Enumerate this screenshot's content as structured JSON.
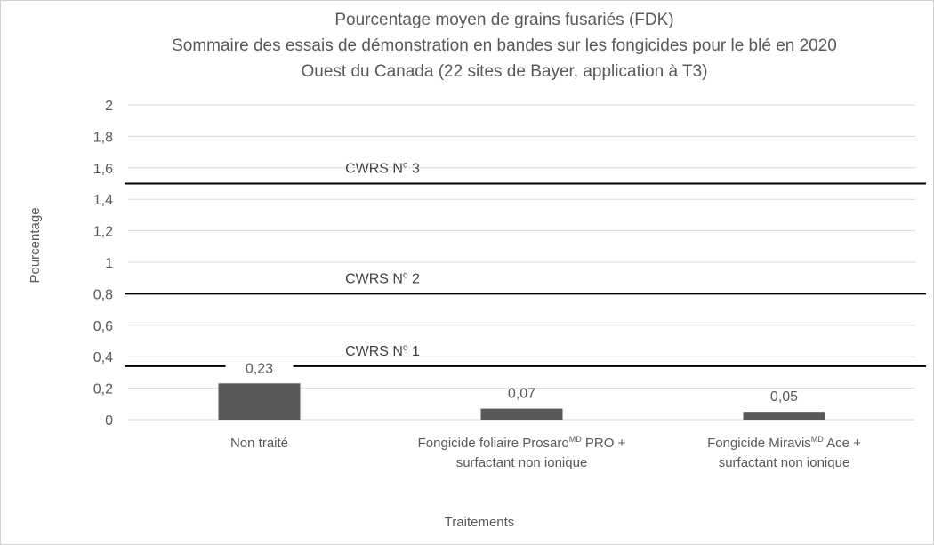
{
  "chart_data": {
    "type": "bar",
    "title_lines": [
      "Pourcentage moyen de grains fusariés (FDK)",
      "Sommaire des essais de démonstration en bandes sur les fongicides pour le blé en 2020",
      "Ouest du Canada (22 sites de Bayer, application à T3)"
    ],
    "xlabel": "Traitements",
    "ylabel": "Pourcentage",
    "ylim": [
      0,
      2
    ],
    "yticks": [
      0,
      0.2,
      0.4,
      0.6,
      0.8,
      1.0,
      1.2,
      1.4,
      1.6,
      1.8,
      2.0
    ],
    "ytick_labels": [
      "0",
      "0,2",
      "0,4",
      "0,6",
      "0,8",
      "1",
      "1,2",
      "1,4",
      "1,6",
      "1,8",
      "2"
    ],
    "grid": true,
    "categories": [
      {
        "lines": [
          {
            "parts": [
              {
                "text": "Non traité",
                "sup": false
              }
            ]
          }
        ]
      },
      {
        "lines": [
          {
            "parts": [
              {
                "text": "Fongicide foliaire Prosaro",
                "sup": false
              },
              {
                "text": "MD",
                "sup": true
              },
              {
                "text": " PRO +",
                "sup": false
              }
            ]
          },
          {
            "parts": [
              {
                "text": "surfactant non ionique",
                "sup": false
              }
            ]
          }
        ]
      },
      {
        "lines": [
          {
            "parts": [
              {
                "text": "Fongicide Miravis",
                "sup": false
              },
              {
                "text": "MD",
                "sup": true
              },
              {
                "text": " Ace +",
                "sup": false
              }
            ]
          },
          {
            "parts": [
              {
                "text": "surfactant non ionique",
                "sup": false
              }
            ]
          }
        ]
      }
    ],
    "values": [
      0.23,
      0.07,
      0.05
    ],
    "value_labels": [
      "0,23",
      "0,07",
      "0,05"
    ],
    "reference_lines": [
      {
        "label": "CWRS N",
        "sup": "o",
        "suffix": " 1",
        "value": 0.34
      },
      {
        "label": "CWRS N",
        "sup": "o",
        "suffix": " 2",
        "value": 0.8
      },
      {
        "label": "CWRS N",
        "sup": "o",
        "suffix": " 3",
        "value": 1.5
      }
    ],
    "colors": {
      "bar": "#595959",
      "grid": "#d9d9d9",
      "reference_line": "#000000",
      "text": "#595959"
    }
  }
}
